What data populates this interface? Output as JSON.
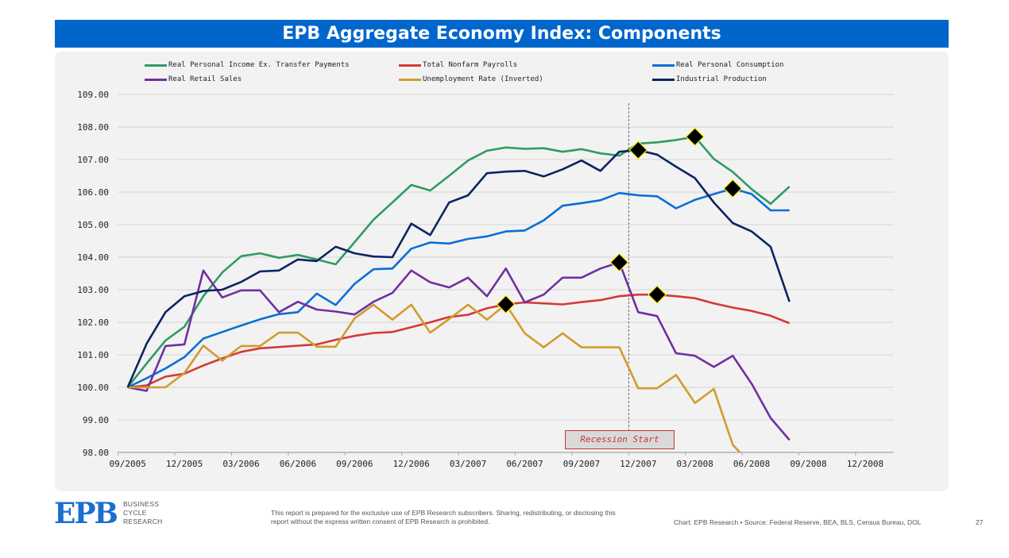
{
  "header": {
    "title": "EPB Aggregate Economy Index: Components"
  },
  "chart_data": {
    "type": "line",
    "title": "EPB Aggregate Economy Index: Components",
    "xlabel": "",
    "ylabel": "",
    "x": [
      "09/2005",
      "10/2005",
      "11/2005",
      "12/2005",
      "01/2006",
      "02/2006",
      "03/2006",
      "04/2006",
      "05/2006",
      "06/2006",
      "07/2006",
      "08/2006",
      "09/2006",
      "10/2006",
      "11/2006",
      "12/2006",
      "01/2007",
      "02/2007",
      "03/2007",
      "04/2007",
      "05/2007",
      "06/2007",
      "07/2007",
      "08/2007",
      "09/2007",
      "10/2007",
      "11/2007",
      "12/2007",
      "01/2008",
      "02/2008",
      "03/2008",
      "04/2008",
      "05/2008",
      "06/2008",
      "07/2008",
      "08/2008"
    ],
    "x_tick_labels": [
      "09/2005",
      "12/2005",
      "03/2006",
      "06/2006",
      "09/2006",
      "12/2006",
      "03/2007",
      "06/2007",
      "09/2007",
      "12/2007",
      "03/2008",
      "06/2008",
      "09/2008",
      "12/2008"
    ],
    "y_tick_labels": [
      "109.00",
      "108.00",
      "107.00",
      "106.00",
      "105.00",
      "104.00",
      "103.00",
      "102.00",
      "101.00",
      "100.00",
      "99.00",
      "98.00"
    ],
    "ylim": [
      98,
      109
    ],
    "grid": true,
    "legend_position": "top",
    "series": [
      {
        "name": "Real Personal Income Ex. Transfer Payments",
        "color": "#2e9b63",
        "values": [
          100,
          100.73,
          101.44,
          101.86,
          102.8,
          103.53,
          104.03,
          104.12,
          103.98,
          104.07,
          103.93,
          103.78,
          104.46,
          105.15,
          105.68,
          106.22,
          106.05,
          106.5,
          106.97,
          107.27,
          107.37,
          107.33,
          107.35,
          107.24,
          107.32,
          107.19,
          107.12,
          107.49,
          107.53,
          107.6,
          107.7,
          107.02,
          106.62,
          106.09,
          105.64,
          106.17
        ],
        "peak_index": 30
      },
      {
        "name": "Total Nonfarm Payrolls",
        "color": "#d33a35",
        "values": [
          100,
          100.06,
          100.33,
          100.42,
          100.67,
          100.89,
          101.09,
          101.2,
          101.24,
          101.28,
          101.32,
          101.46,
          101.58,
          101.67,
          101.7,
          101.85,
          102.0,
          102.16,
          102.23,
          102.43,
          102.55,
          102.61,
          102.58,
          102.55,
          102.62,
          102.68,
          102.8,
          102.85,
          102.85,
          102.8,
          102.74,
          102.58,
          102.45,
          102.35,
          102.2,
          101.97
        ],
        "peak_index": 28
      },
      {
        "name": "Real Personal Consumption",
        "color": "#0a6fd6",
        "values": [
          100,
          100.28,
          100.58,
          100.93,
          101.5,
          101.7,
          101.9,
          102.09,
          102.25,
          102.31,
          102.88,
          102.53,
          103.18,
          103.63,
          103.65,
          104.26,
          104.45,
          104.42,
          104.56,
          104.64,
          104.79,
          104.82,
          105.13,
          105.58,
          105.66,
          105.75,
          105.97,
          105.9,
          105.87,
          105.5,
          105.76,
          105.94,
          106.11,
          105.94,
          105.44,
          105.44
        ],
        "peak_index": 32
      },
      {
        "name": "Real Retail Sales",
        "color": "#7030a0",
        "values": [
          100,
          99.89,
          101.27,
          101.32,
          103.59,
          102.76,
          102.98,
          102.98,
          102.31,
          102.63,
          102.39,
          102.33,
          102.24,
          102.63,
          102.9,
          103.59,
          103.23,
          103.07,
          103.37,
          102.8,
          103.65,
          102.61,
          102.85,
          103.37,
          103.37,
          103.65,
          103.84,
          102.31,
          102.19,
          101.05,
          100.97,
          100.63,
          100.97,
          100.11,
          99.06,
          98.38
        ],
        "peak_index": 26
      },
      {
        "name": "Unemployment Rate (Inverted)",
        "color": "#d29b30",
        "values": [
          100,
          100,
          100,
          100.44,
          101.28,
          100.82,
          101.27,
          101.27,
          101.68,
          101.68,
          101.25,
          101.25,
          102.12,
          102.54,
          102.08,
          102.54,
          101.68,
          102.1,
          102.54,
          102.08,
          102.55,
          101.66,
          101.23,
          101.66,
          101.23,
          101.23,
          101.23,
          99.97,
          99.97,
          100.38,
          99.52,
          99.95,
          98.24,
          97.6,
          null,
          null
        ],
        "peak_index": 20
      },
      {
        "name": "Industrial Production",
        "color": "#0b2463",
        "values": [
          100,
          101.34,
          102.31,
          102.8,
          102.96,
          103.0,
          103.24,
          103.56,
          103.59,
          103.93,
          103.88,
          104.32,
          104.12,
          104.02,
          104.0,
          105.03,
          104.68,
          105.68,
          105.9,
          106.58,
          106.63,
          106.65,
          106.48,
          106.7,
          106.97,
          106.65,
          107.24,
          107.29,
          107.15,
          106.78,
          106.43,
          105.68,
          105.05,
          104.79,
          104.32,
          102.63
        ],
        "peak_index": 27
      }
    ],
    "annotations": [
      {
        "text": "Recession Start",
        "x": "12/2007"
      }
    ]
  },
  "footer": {
    "logo_mark": "EPB",
    "logo_lines": [
      "BUSINESS",
      "CYCLE",
      "RESEARCH"
    ],
    "disclaimer": "This report is prepared for the exclusive use of EPB Research subscribers. Sharing, redistributing, or disclosing this report without the express written consent of EPB Research is prohibited.",
    "source": "Chart: EPB Research  •  Source: Federal Reserve, BEA, BLS, Census Bureau, DOL",
    "page_number": "27"
  }
}
